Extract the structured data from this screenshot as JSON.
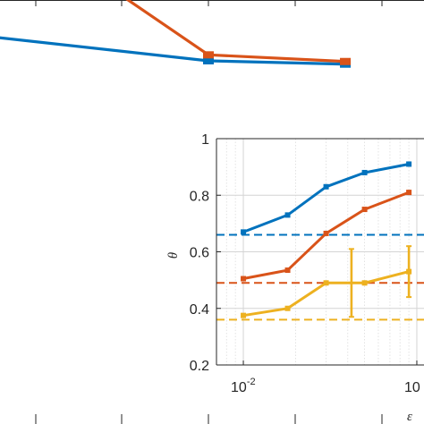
{
  "chart_data": [
    {
      "type": "line",
      "title": "",
      "xlabel": "",
      "ylabel": "",
      "x_scale": "log",
      "series": [
        {
          "name": "",
          "color": "#0072BD",
          "x": [
            0.004,
            0.06,
            0.35
          ],
          "y": [
            0.885,
            0.9025,
            0.905
          ]
        },
        {
          "name": "",
          "color": "#D95319",
          "x": [
            0.004,
            0.06,
            0.35
          ],
          "y": [
            0.79,
            0.898,
            0.903
          ]
        }
      ]
    },
    {
      "type": "line",
      "title": "",
      "xlabel": "ε",
      "ylabel": "θ",
      "x_scale": "log",
      "xlim": [
        0.007,
        0.11
      ],
      "ylim": [
        0.2,
        1
      ],
      "x_ticks": [
        0.01,
        0.1
      ],
      "x_tick_labels": [
        {
          "base": "10",
          "exp": "-2"
        },
        {
          "base": "10",
          "exp": ""
        }
      ],
      "y_ticks": [
        0.2,
        0.4,
        0.6,
        0.8,
        1
      ],
      "y_tick_labels": [
        "0.2",
        "0.4",
        "0.6",
        "0.8",
        "1"
      ],
      "grid": true,
      "series": [
        {
          "name": "",
          "color": "#0072BD",
          "x": [
            0.01,
            0.018,
            0.03,
            0.05,
            0.09
          ],
          "y": [
            0.67,
            0.73,
            0.83,
            0.88,
            0.91
          ],
          "baseline": 0.66
        },
        {
          "name": "",
          "color": "#D95319",
          "x": [
            0.01,
            0.018,
            0.03,
            0.05,
            0.09
          ],
          "y": [
            0.505,
            0.535,
            0.665,
            0.75,
            0.81
          ],
          "baseline": 0.49
        },
        {
          "name": "",
          "color": "#EDB120",
          "x": [
            0.01,
            0.018,
            0.03,
            0.05,
            0.09
          ],
          "y": [
            0.375,
            0.4,
            0.49,
            0.49,
            0.53
          ],
          "baseline": 0.36,
          "error_bars": [
            {
              "x": 0.042,
              "y": 0.49,
              "low": 0.37,
              "high": 0.61
            },
            {
              "x": 0.09,
              "y": 0.53,
              "low": 0.44,
              "high": 0.62
            }
          ]
        }
      ]
    }
  ]
}
